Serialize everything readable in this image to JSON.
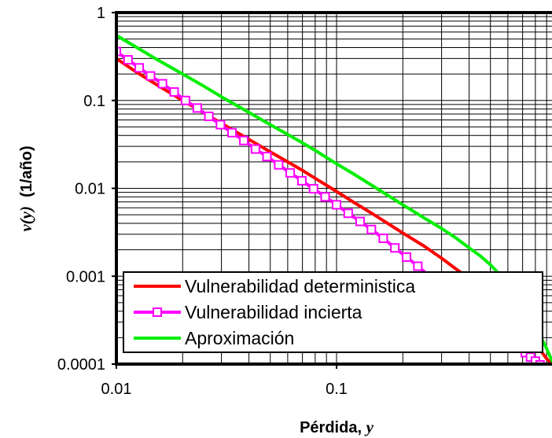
{
  "chart_data": {
    "type": "line",
    "xlabel": {
      "prefix": "Pérdida, ",
      "var": "y"
    },
    "ylabel": {
      "var": "ν(y)",
      "suffix": "  (1/año)"
    },
    "x_scale": "log",
    "y_scale": "log",
    "xlim": [
      0.01,
      1
    ],
    "ylim": [
      0.0001,
      1
    ],
    "x_tick_labels": [
      "0.01",
      "0.1"
    ],
    "y_tick_labels": [
      "0.0001",
      "0.001",
      "0.01",
      "0.1",
      "1"
    ],
    "grid": true,
    "legend_position": "bottom-left",
    "series": [
      {
        "name": "Vulnerabilidad deterministica",
        "color": "#ff0000",
        "marker": "none",
        "x": [
          0.01,
          0.012,
          0.015,
          0.02,
          0.025,
          0.03,
          0.04,
          0.05,
          0.06,
          0.07,
          0.08,
          0.1,
          0.12,
          0.15,
          0.2,
          0.25,
          0.3,
          0.35,
          0.4,
          0.45,
          0.5,
          0.55,
          0.6,
          0.65,
          0.7,
          0.75,
          0.8,
          0.85,
          0.9,
          0.95,
          1.0
        ],
        "y": [
          0.3,
          0.22,
          0.155,
          0.1,
          0.072,
          0.055,
          0.036,
          0.026,
          0.02,
          0.016,
          0.013,
          0.0092,
          0.0069,
          0.0049,
          0.0031,
          0.0022,
          0.0016,
          0.0012,
          0.00095,
          0.00075,
          0.0006,
          0.00048,
          0.00039,
          0.00032,
          0.00026,
          0.00021,
          0.00017,
          0.00014,
          0.000115,
          0.0001,
          9e-05
        ]
      },
      {
        "name": "Vulnerabilidad incierta",
        "color": "#ff00ff",
        "marker": "square",
        "x": [
          0.01,
          0.0113,
          0.0127,
          0.0143,
          0.0162,
          0.0183,
          0.0206,
          0.0233,
          0.0263,
          0.0297,
          0.0335,
          0.0379,
          0.0428,
          0.0483,
          0.0546,
          0.0616,
          0.0696,
          0.0786,
          0.0888,
          0.1,
          0.113,
          0.128,
          0.144,
          0.163,
          0.184,
          0.208,
          0.234,
          0.265,
          0.299,
          0.338,
          0.38,
          0.43,
          0.48,
          0.52,
          0.56,
          0.6,
          0.64,
          0.68,
          0.72,
          0.76,
          0.8,
          0.84,
          0.88,
          0.92,
          0.96,
          1.0
        ],
        "y": [
          0.36,
          0.29,
          0.235,
          0.19,
          0.155,
          0.125,
          0.1,
          0.082,
          0.066,
          0.053,
          0.043,
          0.035,
          0.028,
          0.023,
          0.0185,
          0.015,
          0.0122,
          0.0099,
          0.008,
          0.0065,
          0.0052,
          0.0042,
          0.0034,
          0.0027,
          0.0021,
          0.00165,
          0.0013,
          0.001,
          0.00078,
          0.0006,
          0.00047,
          0.00037,
          0.0003,
          0.00026,
          0.00023,
          0.0002,
          0.000175,
          0.000155,
          0.000135,
          0.00012,
          0.000108,
          9.8e-05,
          9e-05,
          8.3e-05,
          7.7e-05,
          7.2e-05
        ]
      },
      {
        "name": "Aproximación",
        "color": "#00ee00",
        "marker": "none",
        "x": [
          0.01,
          0.012,
          0.015,
          0.02,
          0.025,
          0.03,
          0.04,
          0.05,
          0.06,
          0.07,
          0.08,
          0.1,
          0.12,
          0.15,
          0.2,
          0.25,
          0.3,
          0.35,
          0.4,
          0.45,
          0.5,
          0.55,
          0.6,
          0.65,
          0.7,
          0.75,
          0.8,
          0.85,
          0.9,
          0.95,
          1.0
        ],
        "y": [
          0.55,
          0.42,
          0.3,
          0.2,
          0.145,
          0.11,
          0.073,
          0.053,
          0.041,
          0.033,
          0.027,
          0.019,
          0.0145,
          0.0102,
          0.0065,
          0.0046,
          0.0035,
          0.0027,
          0.0021,
          0.0017,
          0.00135,
          0.00105,
          0.00082,
          0.00063,
          0.00048,
          0.00036,
          0.00027,
          0.0002,
          0.00015,
          0.00011,
          9e-05
        ]
      }
    ]
  }
}
